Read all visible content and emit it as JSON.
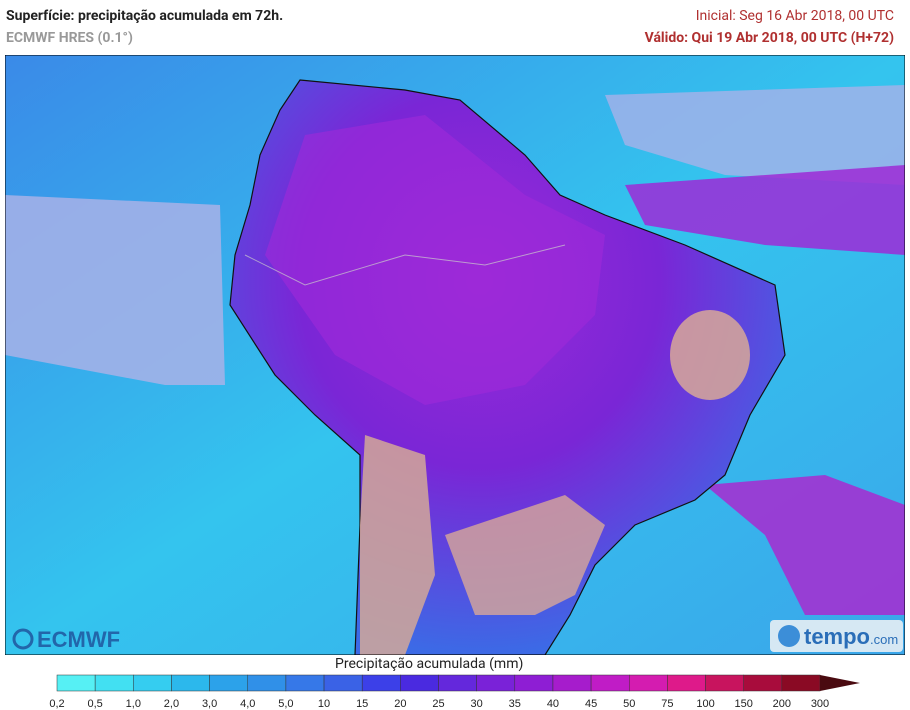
{
  "header": {
    "title": "Superfície: precipitação acumulada em 72h.",
    "model": "ECMWF HRES (0.1°)",
    "initial": "Inicial: Seg 16 Abr 2018, 00 UTC",
    "valid": "Válido: Qui 19 Abr 2018, 00 UTC (H+72)"
  },
  "legend": {
    "title": "Precipitação acumulada (mm)",
    "ticks": [
      "0,2",
      "0,5",
      "1,0",
      "2,0",
      "3,0",
      "4,0",
      "5,0",
      "10",
      "15",
      "20",
      "25",
      "30",
      "35",
      "40",
      "45",
      "50",
      "75",
      "100",
      "150",
      "200",
      "300"
    ],
    "colors": [
      "#56f0f4",
      "#42e0f2",
      "#35cdf0",
      "#2cb8ec",
      "#2ca2ea",
      "#3090e8",
      "#3678e8",
      "#3a62e6",
      "#3c40e8",
      "#4a2ae0",
      "#6428dc",
      "#7a22d8",
      "#8e1ed4",
      "#a61ccc",
      "#c01cc6",
      "#d41cb0",
      "#de1a8a",
      "#c8145e",
      "#a80c3c",
      "#8a0a24"
    ],
    "extend_color": "#4a0a10"
  },
  "logos": {
    "left": "ECMWF",
    "right_main": "tempo",
    "right_suffix": ".com"
  }
}
